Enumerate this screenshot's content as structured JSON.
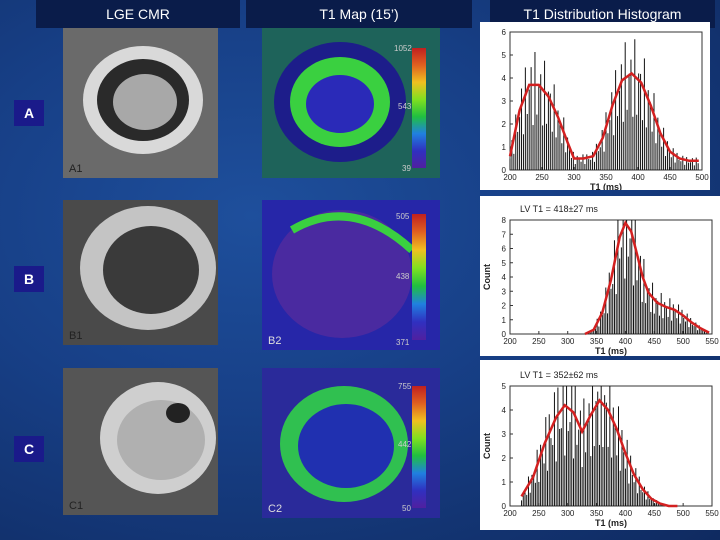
{
  "headers": {
    "lge": "LGE CMR",
    "tmap": "T1 Map (15’)",
    "hist": "T1 Distribution Histogram"
  },
  "rows": {
    "a": "A",
    "b": "B",
    "c": "C"
  },
  "panel_labels": {
    "a1": "A1",
    "b1": "B1",
    "b2": "B2",
    "c1": "C1",
    "c2": "C2"
  },
  "colorbar_ticks": {
    "a": [
      "1052",
      "543",
      "39"
    ],
    "b": [
      "505",
      "438",
      "371"
    ],
    "c": [
      "755",
      "442",
      "50"
    ]
  },
  "chart_data": [
    {
      "type": "bar",
      "title": "",
      "xlabel": "T1 (ms)",
      "ylabel": "",
      "xlim": [
        200,
        500
      ],
      "ylim": [
        0,
        6
      ],
      "xticks": [
        "200",
        "250",
        "300",
        "350",
        "400",
        "450",
        "500"
      ],
      "yticks": [
        "0",
        "1",
        "2",
        "3",
        "4",
        "5",
        "6"
      ],
      "fit_curve": {
        "x": [
          200,
          215,
          230,
          245,
          260,
          275,
          290,
          300,
          315,
          330,
          345,
          360,
          375,
          390,
          405,
          420,
          435,
          450,
          465,
          480,
          495
        ],
        "y": [
          0.6,
          2.6,
          3.7,
          3.7,
          3.2,
          2.3,
          1.2,
          0.5,
          0.5,
          0.6,
          1.4,
          2.8,
          3.9,
          4.2,
          3.8,
          2.8,
          1.6,
          0.8,
          0.5,
          0.4,
          0.4
        ]
      }
    },
    {
      "type": "bar",
      "title": "LV T1 = 418±27 ms",
      "xlabel": "T1 (ms)",
      "ylabel": "Count",
      "xlim": [
        200,
        550
      ],
      "ylim": [
        0,
        8
      ],
      "xticks": [
        "200",
        "250",
        "300",
        "350",
        "400",
        "450",
        "500",
        "550"
      ],
      "yticks": [
        "0",
        "1",
        "2",
        "3",
        "4",
        "5",
        "6",
        "7",
        "8"
      ],
      "fit_curve": {
        "x": [
          330,
          345,
          360,
          375,
          390,
          400,
          410,
          420,
          430,
          440,
          455,
          470,
          485,
          500,
          515,
          530,
          545
        ],
        "y": [
          0,
          0.3,
          1.5,
          3.8,
          6.8,
          7.8,
          7.2,
          5.6,
          4.0,
          2.9,
          2.2,
          1.9,
          1.7,
          1.3,
          0.8,
          0.4,
          0.1
        ]
      }
    },
    {
      "type": "bar",
      "title": "LV T1 = 352±62 ms",
      "xlabel": "T1 (ms)",
      "ylabel": "Count",
      "xlim": [
        200,
        550
      ],
      "ylim": [
        0,
        5
      ],
      "xticks": [
        "200",
        "250",
        "300",
        "350",
        "400",
        "450",
        "500",
        "550"
      ],
      "yticks": [
        "0",
        "1",
        "2",
        "3",
        "4",
        "5"
      ],
      "fit_curve": {
        "x": [
          220,
          240,
          260,
          280,
          295,
          310,
          325,
          340,
          355,
          370,
          385,
          400,
          415,
          430,
          445,
          460,
          475,
          490
        ],
        "y": [
          0.4,
          1.2,
          2.6,
          3.7,
          4.2,
          3.9,
          3.1,
          3.8,
          4.4,
          4.0,
          3.2,
          2.2,
          1.3,
          0.7,
          0.3,
          0.1,
          0.0,
          0.0
        ]
      }
    }
  ]
}
